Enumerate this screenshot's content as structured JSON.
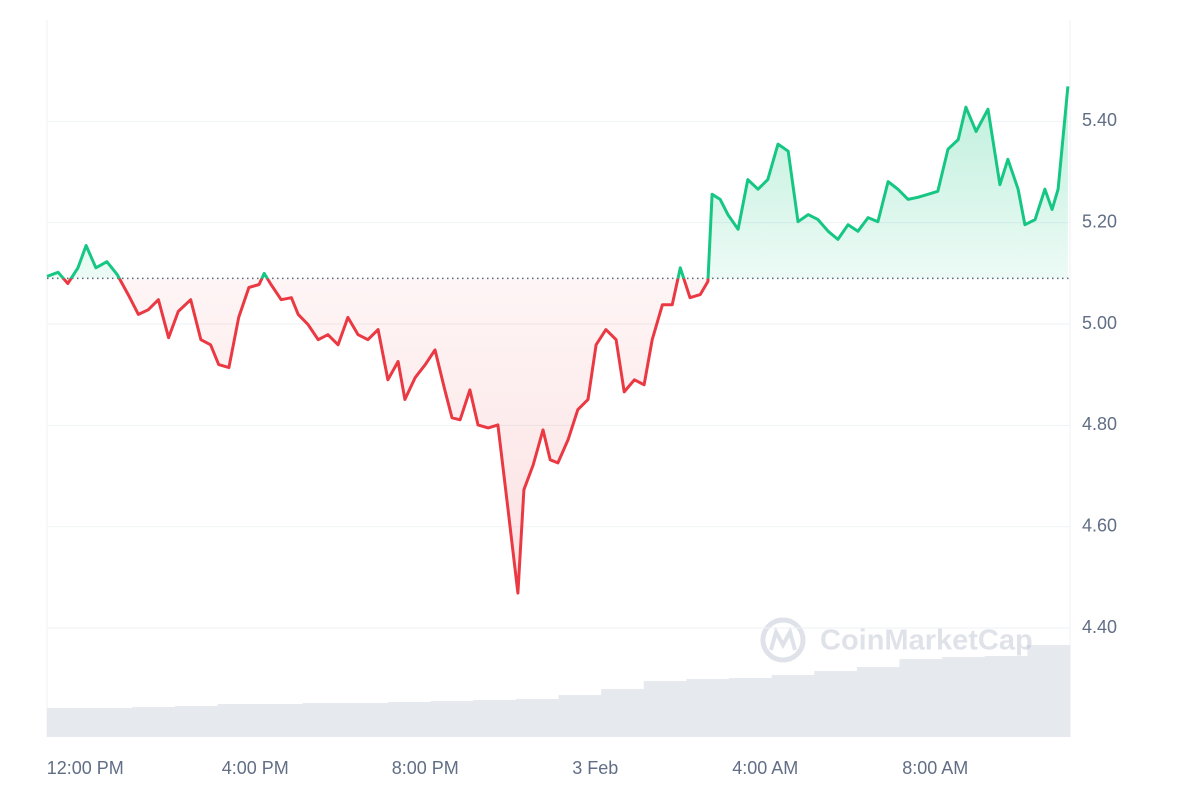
{
  "chart_data": {
    "type": "line",
    "x": [
      -0.9,
      -0.64,
      -0.41,
      -0.17,
      0.02,
      0.25,
      0.51,
      0.75,
      1.01,
      1.25,
      1.48,
      1.72,
      1.96,
      2.19,
      2.48,
      2.72,
      2.95,
      3.14,
      3.38,
      3.61,
      3.85,
      4.09,
      4.21,
      4.37,
      4.61,
      4.85,
      5.01,
      5.24,
      5.48,
      5.71,
      5.95,
      6.18,
      6.42,
      6.65,
      6.89,
      7.12,
      7.36,
      7.52,
      7.76,
      8.0,
      8.23,
      8.46,
      8.63,
      8.82,
      9.05,
      9.24,
      9.48,
      9.71,
      9.95,
      10.18,
      10.32,
      10.54,
      10.77,
      10.94,
      11.12,
      11.36,
      11.59,
      11.83,
      12.02,
      12.25,
      12.49,
      12.68,
      12.92,
      13.15,
      13.34,
      13.58,
      13.81,
      14.0,
      14.23,
      14.47,
      14.65,
      14.75,
      14.94,
      15.12,
      15.36,
      15.59,
      15.83,
      16.06,
      16.3,
      16.54,
      16.77,
      17.01,
      17.24,
      17.48,
      17.71,
      17.95,
      18.18,
      18.42,
      18.65,
      18.89,
      19.12,
      19.36,
      19.59,
      19.83,
      20.06,
      20.3,
      20.54,
      20.72,
      20.96,
      21.24,
      21.52,
      21.71,
      21.95,
      22.11,
      22.35,
      22.58,
      22.75,
      22.89,
      23.12
    ],
    "values": [
      5.094,
      5.102,
      5.08,
      5.111,
      5.155,
      5.111,
      5.123,
      5.098,
      5.058,
      5.019,
      5.028,
      5.048,
      4.973,
      5.025,
      5.048,
      4.969,
      4.959,
      4.92,
      4.914,
      5.013,
      5.072,
      5.078,
      5.1,
      5.078,
      5.048,
      5.052,
      5.019,
      4.999,
      4.969,
      4.979,
      4.959,
      5.013,
      4.979,
      4.969,
      4.989,
      4.89,
      4.926,
      4.851,
      4.894,
      4.92,
      4.949,
      4.87,
      4.815,
      4.811,
      4.87,
      4.801,
      4.795,
      4.801,
      4.633,
      4.469,
      4.673,
      4.722,
      4.791,
      4.732,
      4.726,
      4.772,
      4.831,
      4.851,
      4.959,
      4.989,
      4.969,
      4.866,
      4.89,
      4.88,
      4.969,
      5.038,
      5.038,
      5.111,
      5.052,
      5.058,
      5.084,
      5.256,
      5.246,
      5.216,
      5.187,
      5.285,
      5.266,
      5.285,
      5.355,
      5.341,
      5.202,
      5.216,
      5.206,
      5.183,
      5.167,
      5.196,
      5.183,
      5.21,
      5.202,
      5.281,
      5.266,
      5.246,
      5.25,
      5.256,
      5.262,
      5.345,
      5.364,
      5.428,
      5.38,
      5.424,
      5.275,
      5.325,
      5.266,
      5.196,
      5.206,
      5.266,
      5.226,
      5.266,
      5.469
    ],
    "baseline": 5.09,
    "up_color": "#16c784",
    "down_color": "#ea3943",
    "xlim": [
      -0.9,
      23.17
    ],
    "xticks": [
      {
        "value": 0,
        "label": "12:00 PM"
      },
      {
        "value": 4,
        "label": "4:00 PM"
      },
      {
        "value": 8,
        "label": "8:00 PM"
      },
      {
        "value": 12,
        "label": "3 Feb"
      },
      {
        "value": 16,
        "label": "4:00 AM"
      },
      {
        "value": 20,
        "label": "8:00 AM"
      }
    ],
    "ylim": [
      4.185,
      5.6
    ],
    "yticks": [
      {
        "value": 4.4,
        "label": "4.40"
      },
      {
        "value": 4.6,
        "label": "4.60"
      },
      {
        "value": 4.8,
        "label": "4.80"
      },
      {
        "value": 5.0,
        "label": "5.00"
      },
      {
        "value": 5.2,
        "label": "5.20"
      },
      {
        "value": 5.4,
        "label": "5.40"
      }
    ],
    "grid": true,
    "volume": {
      "color": "#e6e9ee",
      "lim": [
        0,
        100
      ],
      "values": [
        29,
        29,
        30,
        31,
        33,
        33,
        34,
        34,
        35,
        36,
        37,
        38,
        42,
        48,
        56,
        58,
        59,
        62,
        66,
        70,
        78,
        80,
        81,
        92
      ]
    },
    "watermark": "CoinMarketCap"
  }
}
